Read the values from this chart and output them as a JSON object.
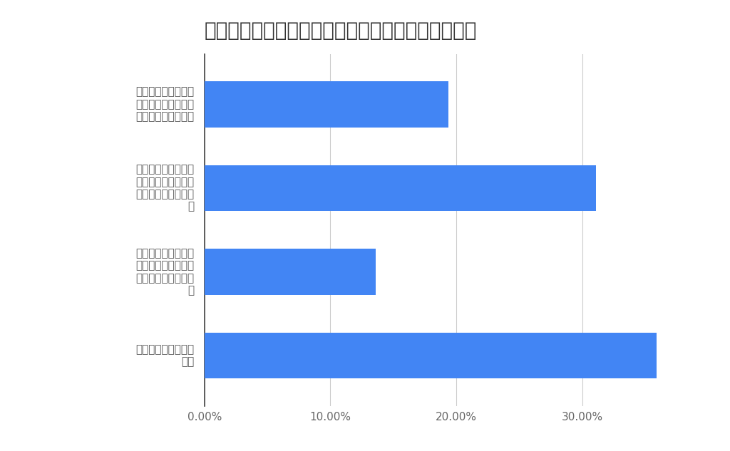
{
  "title": "墓石購入者に聞く、墓石価格相場の認知度と納得感",
  "categories": [
    "価格相場をよく知ら\nない",
    "一般的な価格相場を\n知っているが、その\n内訳はよくわからな\nい",
    "一般的な価格相場を\n知っているが、その\n内訳には懐疑的であ\nる",
    "一般的な価格相場を\n知っていて、その内\n訳にも納得感がある"
  ],
  "values": [
    0.359,
    0.136,
    0.311,
    0.194
  ],
  "bar_color": "#4285F4",
  "xlim": [
    0,
    0.4
  ],
  "xtick_values": [
    0.0,
    0.1,
    0.2,
    0.3
  ],
  "xtick_labels": [
    "0.00%",
    "10.00%",
    "20.00%",
    "30.00%"
  ],
  "background_color": "#ffffff",
  "title_fontsize": 20,
  "label_fontsize": 11,
  "tick_fontsize": 11,
  "bar_height": 0.55,
  "grid_color": "#cccccc",
  "title_color": "#333333",
  "label_color": "#555555"
}
